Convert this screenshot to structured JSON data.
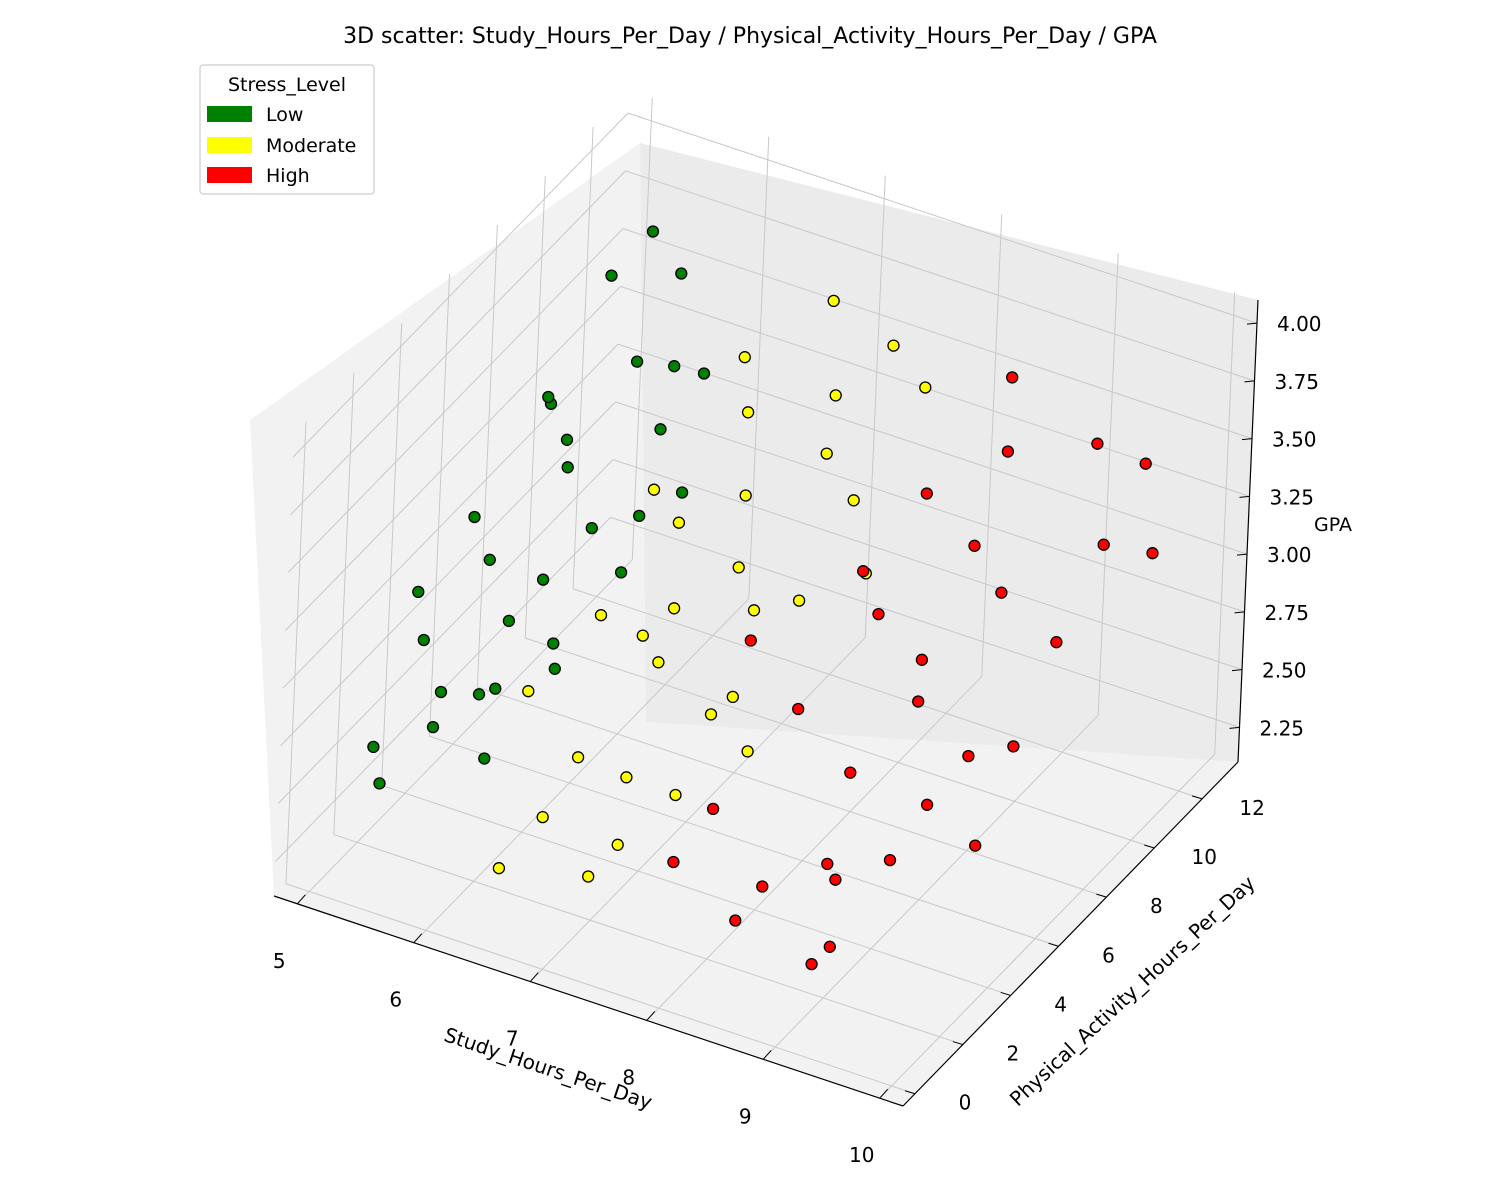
{
  "chart_data": {
    "type": "scatter",
    "title": "3D scatter: Study_Hours_Per_Day / Physical_Activity_Hours_Per_Day / GPA",
    "xlabel": "Study_Hours_Per_Day",
    "ylabel": "Physical_Activity_Hours_Per_Day",
    "zlabel": "GPA",
    "xlim": [
      4.8,
      10.2
    ],
    "ylim": [
      -0.5,
      13.5
    ],
    "zlim": [
      2.1,
      4.1
    ],
    "x_ticks": [
      "5",
      "6",
      "7",
      "8",
      "9",
      "10"
    ],
    "y_ticks": [
      "0",
      "2",
      "4",
      "6",
      "8",
      "10",
      "12"
    ],
    "z_ticks": [
      "2.25",
      "2.50",
      "2.75",
      "3.00",
      "3.25",
      "3.50",
      "3.75",
      "4.00"
    ],
    "grid": true,
    "legend": {
      "title": "Stress_Level",
      "placement": "top-left",
      "entries": [
        {
          "label": "Low",
          "color": "#008000"
        },
        {
          "label": "Moderate",
          "color": "#ffff00"
        },
        {
          "label": "High",
          "color": "#ff0000"
        }
      ]
    },
    "series": [
      {
        "name": "Low",
        "color": "#008000",
        "points": [
          [
            5.0,
            4.2,
            2.95
          ],
          [
            5.1,
            6.0,
            3.1
          ],
          [
            5.2,
            3.5,
            2.85
          ],
          [
            5.3,
            8.1,
            3.4
          ],
          [
            5.4,
            5.2,
            3.05
          ],
          [
            5.5,
            2.8,
            2.75
          ],
          [
            5.6,
            7.4,
            3.25
          ],
          [
            5.7,
            4.6,
            2.9
          ],
          [
            5.8,
            9.2,
            3.55
          ],
          [
            5.9,
            3.1,
            2.8
          ],
          [
            6.0,
            6.5,
            3.15
          ],
          [
            5.2,
            1.5,
            2.6
          ],
          [
            5.4,
            0.8,
            2.55
          ],
          [
            5.6,
            2.0,
            2.7
          ],
          [
            5.8,
            5.5,
            3.0
          ],
          [
            6.1,
            8.8,
            3.35
          ],
          [
            6.2,
            4.0,
            2.95
          ],
          [
            6.3,
            7.0,
            3.2
          ],
          [
            5.3,
            10.5,
            3.7
          ],
          [
            5.5,
            11.2,
            3.85
          ],
          [
            5.7,
            6.8,
            3.45
          ],
          [
            5.9,
            2.4,
            2.85
          ],
          [
            6.0,
            9.8,
            3.5
          ],
          [
            6.2,
            1.2,
            2.75
          ],
          [
            6.4,
            5.8,
            3.1
          ],
          [
            5.1,
            9.0,
            3.3
          ],
          [
            5.6,
            12.0,
            3.6
          ],
          [
            6.1,
            10.6,
            3.4
          ],
          [
            6.3,
            3.6,
            2.9
          ],
          [
            6.5,
            7.8,
            3.25
          ]
        ]
      },
      {
        "name": "Moderate",
        "color": "#ffff00",
        "points": [
          [
            6.2,
            3.0,
            2.85
          ],
          [
            6.4,
            5.0,
            3.0
          ],
          [
            6.6,
            7.2,
            3.2
          ],
          [
            6.8,
            2.2,
            2.75
          ],
          [
            7.0,
            4.5,
            2.95
          ],
          [
            7.2,
            6.8,
            3.15
          ],
          [
            7.4,
            1.0,
            2.6
          ],
          [
            7.6,
            3.8,
            2.9
          ],
          [
            7.8,
            8.6,
            3.35
          ],
          [
            6.5,
            0.5,
            2.4
          ],
          [
            6.7,
            9.5,
            3.45
          ],
          [
            6.9,
            5.6,
            3.05
          ],
          [
            7.1,
            2.8,
            2.65
          ],
          [
            7.3,
            10.2,
            3.55
          ],
          [
            7.5,
            6.0,
            3.1
          ],
          [
            7.7,
            4.2,
            2.95
          ],
          [
            7.9,
            11.0,
            3.6
          ],
          [
            6.3,
            7.6,
            3.25
          ],
          [
            6.6,
            1.8,
            2.5
          ],
          [
            6.8,
            4.8,
            3.0
          ],
          [
            7.0,
            8.0,
            3.3
          ],
          [
            7.2,
            0.8,
            2.45
          ],
          [
            7.4,
            9.4,
            3.4
          ],
          [
            7.6,
            2.4,
            2.7
          ],
          [
            7.8,
            6.4,
            3.15
          ],
          [
            8.0,
            3.4,
            2.85
          ],
          [
            8.2,
            7.2,
            3.25
          ],
          [
            6.4,
            10.8,
            3.5
          ],
          [
            6.9,
            12.0,
            3.7
          ],
          [
            7.5,
            11.6,
            3.65
          ]
        ]
      },
      {
        "name": "High",
        "color": "#ff0000",
        "points": [
          [
            8.0,
            2.0,
            2.75
          ],
          [
            8.2,
            4.5,
            2.95
          ],
          [
            8.4,
            6.8,
            3.15
          ],
          [
            8.6,
            1.2,
            2.6
          ],
          [
            8.8,
            3.8,
            2.85
          ],
          [
            9.0,
            5.6,
            3.0
          ],
          [
            9.2,
            8.0,
            3.25
          ],
          [
            9.4,
            2.6,
            2.7
          ],
          [
            9.6,
            4.8,
            2.95
          ],
          [
            9.8,
            7.4,
            3.2
          ],
          [
            10.0,
            3.2,
            2.8
          ],
          [
            8.3,
            9.2,
            3.4
          ],
          [
            8.5,
            0.6,
            2.5
          ],
          [
            8.7,
            10.6,
            3.5
          ],
          [
            8.9,
            6.2,
            3.1
          ],
          [
            9.1,
            1.8,
            2.65
          ],
          [
            9.3,
            11.4,
            3.55
          ],
          [
            9.5,
            3.6,
            2.85
          ],
          [
            9.7,
            9.8,
            3.35
          ],
          [
            9.9,
            5.2,
            3.0
          ],
          [
            8.1,
            7.6,
            3.2
          ],
          [
            8.4,
            12.2,
            3.6
          ],
          [
            8.8,
            8.8,
            3.3
          ],
          [
            9.2,
            0.4,
            2.45
          ],
          [
            9.6,
            12.0,
            3.45
          ],
          [
            7.6,
            5.4,
            3.05
          ],
          [
            7.8,
            1.4,
            2.55
          ],
          [
            10.0,
            10.4,
            3.3
          ],
          [
            9.0,
            2.2,
            2.3
          ],
          [
            8.6,
            4.0,
            2.4
          ]
        ]
      }
    ]
  }
}
